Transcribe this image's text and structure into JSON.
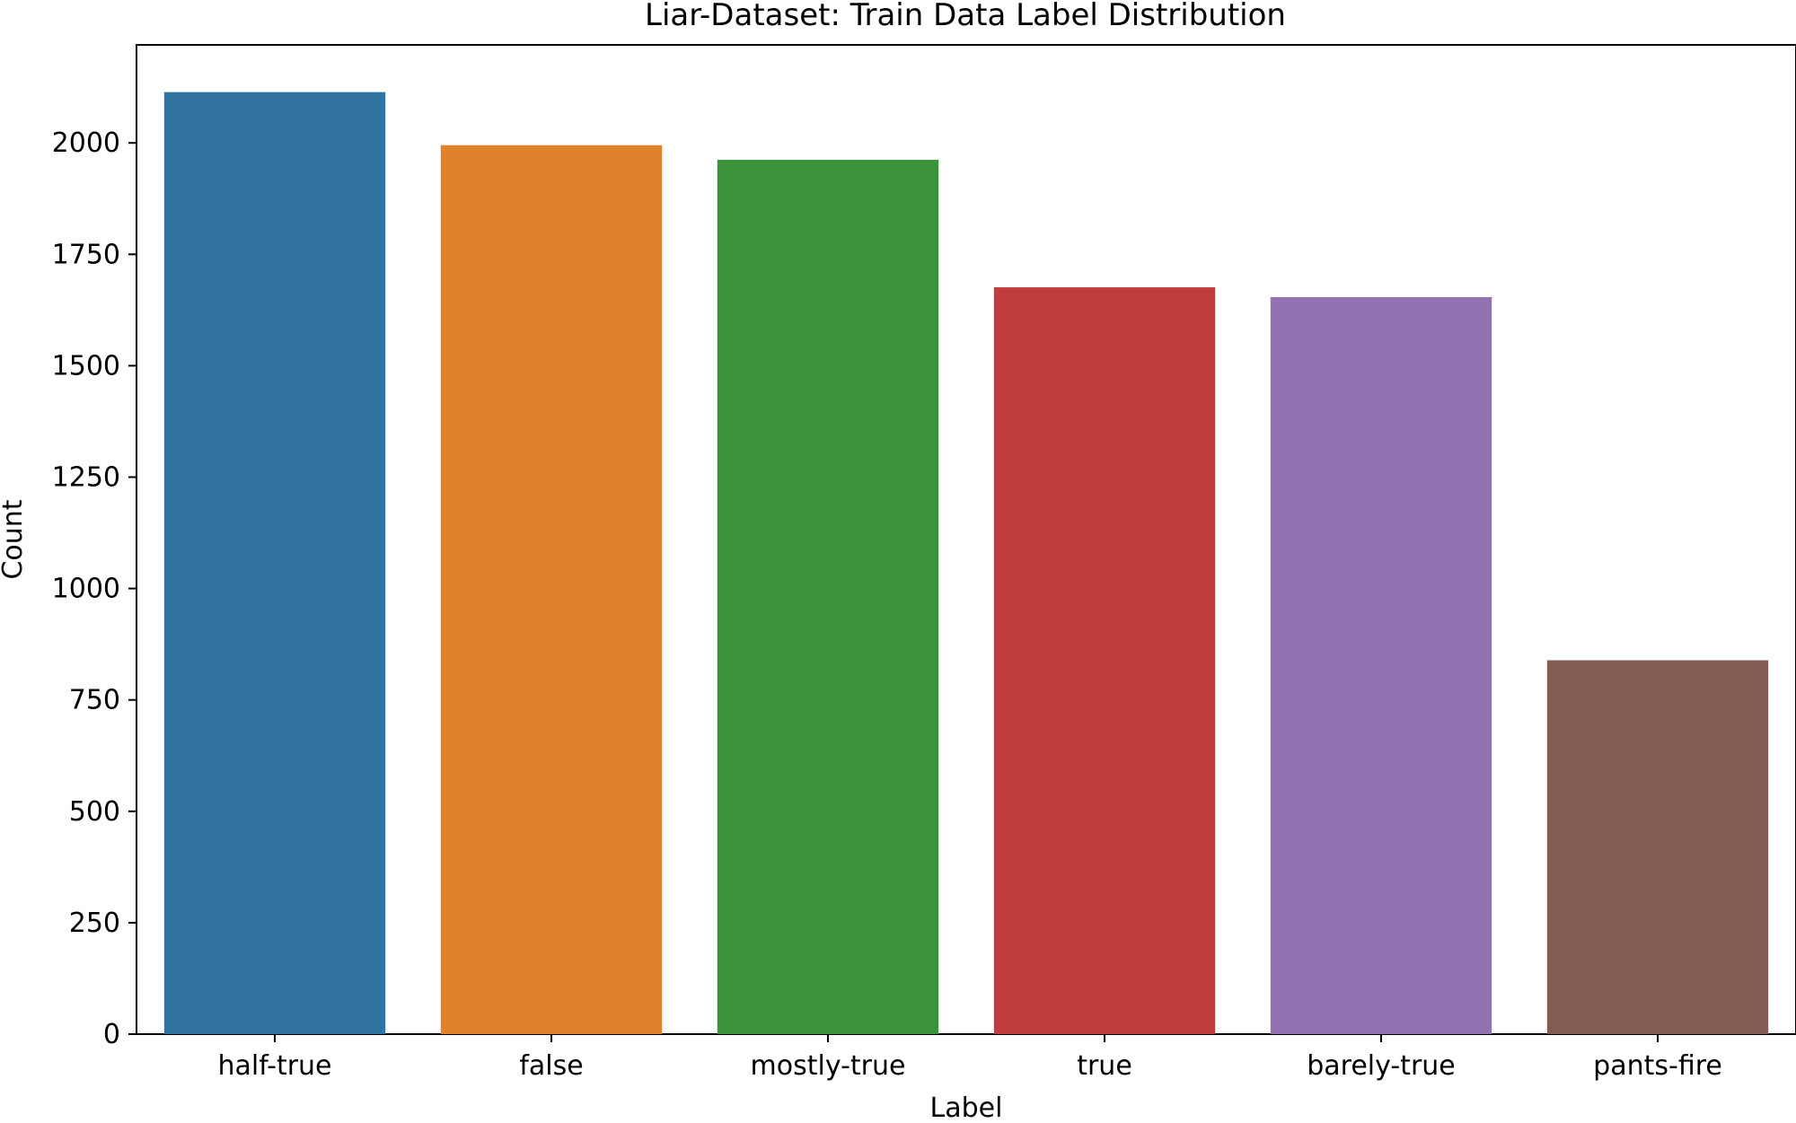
{
  "chart_data": {
    "type": "bar",
    "title": "Liar-Dataset: Train Data Label Distribution",
    "xlabel": "Label",
    "ylabel": "Count",
    "categories": [
      "half-true",
      "false",
      "mostly-true",
      "true",
      "barely-true",
      "pants-fire"
    ],
    "values": [
      2114,
      1995,
      1962,
      1676,
      1654,
      839
    ],
    "colors": [
      "#3274a1",
      "#e1812c",
      "#3a923a",
      "#c03d3e",
      "#9372b2",
      "#845b53"
    ],
    "ylim": [
      0,
      2220
    ],
    "yticks": [
      0,
      250,
      500,
      750,
      1000,
      1250,
      1500,
      1750,
      2000
    ],
    "grid": false,
    "legend": "none"
  }
}
